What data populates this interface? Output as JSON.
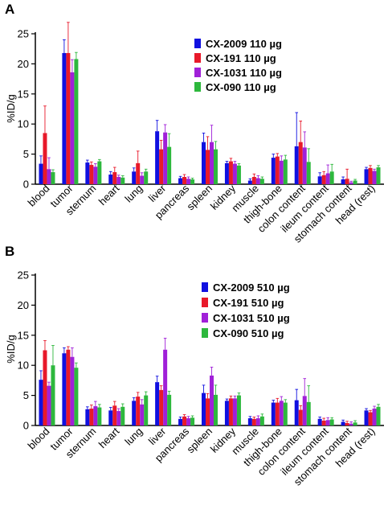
{
  "chart_data": [
    {
      "type": "bar",
      "panel_label": "A",
      "ylabel": "%ID/g",
      "ylim": [
        0,
        25
      ],
      "yticks": [
        "0",
        "5",
        "10",
        "15",
        "20",
        "25"
      ],
      "categories": [
        "blood",
        "tumor",
        "sternum",
        "heart",
        "lung",
        "liver",
        "pancreas",
        "spleen",
        "kidney",
        "muscle",
        "thigh-bone",
        "colon content",
        "ileum content",
        "stomach content",
        "head (rest)"
      ],
      "legend_position": "top-right",
      "series": [
        {
          "name": "CX-2009 110 µg",
          "color": "#1010e0",
          "values": [
            3.4,
            21.8,
            3.6,
            1.6,
            2.1,
            8.8,
            1.0,
            7.0,
            3.5,
            0.6,
            4.4,
            6.3,
            1.3,
            0.8,
            2.5
          ],
          "errors": [
            1.3,
            2.2,
            0.4,
            0.5,
            0.6,
            1.8,
            0.3,
            1.5,
            0.3,
            0.3,
            0.6,
            5.6,
            0.6,
            0.4,
            0.3
          ]
        },
        {
          "name": "CX-191 110 µg",
          "color": "#e8192a",
          "values": [
            8.5,
            21.8,
            3.2,
            2.0,
            3.5,
            5.8,
            1.2,
            5.7,
            3.8,
            1.2,
            4.6,
            7.0,
            1.5,
            0.9,
            2.7
          ],
          "errors": [
            4.5,
            5.1,
            0.5,
            0.8,
            2.0,
            1.5,
            0.4,
            2.2,
            0.5,
            0.5,
            0.5,
            3.5,
            0.6,
            1.6,
            0.4
          ]
        },
        {
          "name": "CX-1031 110 µg",
          "color": "#a020d8",
          "values": [
            2.5,
            18.6,
            2.9,
            1.2,
            1.4,
            8.6,
            0.9,
            7.0,
            3.4,
            1.0,
            3.9,
            6.1,
            1.8,
            0.3,
            2.2
          ],
          "errors": [
            1.9,
            2.1,
            0.5,
            0.3,
            0.5,
            1.3,
            0.3,
            2.8,
            0.4,
            0.4,
            0.8,
            2.6,
            1.4,
            0.2,
            0.3
          ]
        },
        {
          "name": "CX-090 110 µg",
          "color": "#2db83d",
          "values": [
            2.0,
            20.8,
            3.8,
            1.1,
            2.1,
            6.2,
            0.8,
            5.8,
            3.1,
            0.9,
            4.1,
            3.7,
            2.1,
            0.6,
            2.8
          ],
          "errors": [
            0.4,
            1.1,
            0.3,
            0.3,
            0.4,
            2.2,
            0.2,
            1.3,
            0.3,
            0.3,
            0.7,
            2.2,
            1.2,
            0.2,
            0.3
          ]
        }
      ]
    },
    {
      "type": "bar",
      "panel_label": "B",
      "ylabel": "%ID/g",
      "ylim": [
        0,
        25
      ],
      "yticks": [
        "0",
        "5",
        "10",
        "15",
        "20",
        "25"
      ],
      "categories": [
        "blood",
        "tumor",
        "sternum",
        "heart",
        "lung",
        "liver",
        "pancreas",
        "spleen",
        "kidney",
        "muscle",
        "thigh-bone",
        "colon content",
        "ileum content",
        "stomach content",
        "head (rest)"
      ],
      "legend_position": "top-right",
      "series": [
        {
          "name": "CX-2009 510 µg",
          "color": "#1010e0",
          "values": [
            7.6,
            12.0,
            2.7,
            2.5,
            4.1,
            7.2,
            1.1,
            5.4,
            4.1,
            1.2,
            3.8,
            4.2,
            1.1,
            0.6,
            2.5
          ],
          "errors": [
            1.5,
            0.9,
            0.4,
            0.5,
            0.5,
            1.0,
            0.3,
            1.3,
            0.3,
            0.3,
            0.4,
            1.8,
            0.3,
            0.3,
            0.3
          ]
        },
        {
          "name": "CX-191 510 µg",
          "color": "#e8192a",
          "values": [
            12.5,
            12.6,
            2.8,
            3.3,
            4.8,
            5.9,
            1.5,
            4.5,
            4.5,
            1.1,
            3.8,
            2.6,
            0.8,
            0.4,
            2.2
          ],
          "errors": [
            1.6,
            0.5,
            0.6,
            0.7,
            0.7,
            0.7,
            0.3,
            0.8,
            0.4,
            0.3,
            0.7,
            0.7,
            0.4,
            0.3,
            0.3
          ]
        },
        {
          "name": "CX-1031 510 µg",
          "color": "#a020d8",
          "values": [
            6.6,
            11.4,
            3.2,
            2.4,
            3.5,
            12.6,
            1.2,
            8.3,
            4.5,
            1.2,
            4.1,
            4.9,
            0.9,
            0.3,
            2.8
          ],
          "errors": [
            0.6,
            1.5,
            0.8,
            0.4,
            0.8,
            1.9,
            0.3,
            1.4,
            0.4,
            0.4,
            0.7,
            2.9,
            0.4,
            0.3,
            0.4
          ]
        },
        {
          "name": "CX-090 510 µg",
          "color": "#2db83d",
          "values": [
            10.0,
            9.6,
            3.0,
            3.1,
            5.0,
            5.1,
            1.3,
            5.1,
            5.0,
            1.5,
            3.8,
            3.9,
            1.0,
            0.5,
            3.1
          ],
          "errors": [
            3.3,
            0.8,
            0.5,
            0.5,
            0.6,
            0.6,
            0.3,
            1.6,
            0.4,
            0.4,
            0.5,
            2.7,
            0.3,
            0.3,
            0.4
          ]
        }
      ]
    }
  ]
}
